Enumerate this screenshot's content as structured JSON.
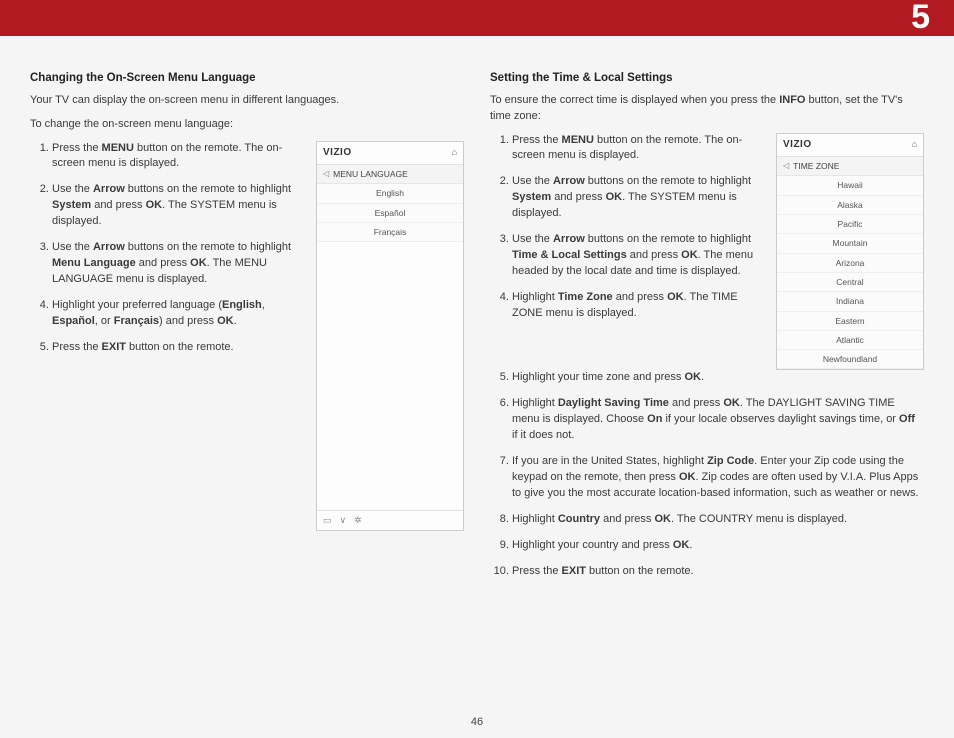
{
  "chapter_number": "5",
  "page_number": "46",
  "left": {
    "title": "Changing the On-Screen Menu Language",
    "intro1": "Your TV can display the on-screen menu in different languages.",
    "intro2": "To change the on-screen menu language:",
    "step1_a": "Press the ",
    "step1_b": "MENU",
    "step1_c": " button on the remote. The on-screen menu is displayed.",
    "step2_a": "Use the ",
    "step2_b": "Arrow",
    "step2_c": " buttons on the remote to highlight ",
    "step2_d": "System",
    "step2_e": " and press ",
    "step2_f": "OK",
    "step2_g": ". The SYSTEM menu is displayed.",
    "step3_a": "Use the ",
    "step3_b": "Arrow",
    "step3_c": " buttons on the remote to highlight ",
    "step3_d": "Menu Language",
    "step3_e": " and press ",
    "step3_f": "OK",
    "step3_g": ". The MENU LANGUAGE menu is displayed.",
    "step4_a": "Highlight your preferred language (",
    "step4_b": "English",
    "step4_c": ", ",
    "step4_d": "Español",
    "step4_e": ", or ",
    "step4_f": "Français",
    "step4_g": ") and press ",
    "step4_h": "OK",
    "step4_i": ".",
    "step5_a": "Press the ",
    "step5_b": "EXIT",
    "step5_c": " button on the remote.",
    "menu": {
      "logo": "VIZIO",
      "title": "MENU LANGUAGE",
      "items": [
        "English",
        "Español",
        "Français"
      ]
    }
  },
  "right": {
    "title": "Setting the Time & Local Settings",
    "intro_a": "To ensure the correct time is displayed when you press the ",
    "intro_b": "INFO",
    "intro_c": " button, set the TV's time zone:",
    "step1_a": "Press the ",
    "step1_b": "MENU",
    "step1_c": " button on the remote. The on-screen menu is displayed.",
    "step2_a": "Use the ",
    "step2_b": "Arrow",
    "step2_c": " buttons on the remote to highlight ",
    "step2_d": "System",
    "step2_e": " and press ",
    "step2_f": "OK",
    "step2_g": ". The SYSTEM menu is displayed.",
    "step3_a": "Use the ",
    "step3_b": "Arrow",
    "step3_c": " buttons on the remote to highlight ",
    "step3_d": "Time & Local Settings",
    "step3_e": " and press ",
    "step3_f": "OK",
    "step3_g": ". The menu headed by the local date and time is displayed.",
    "step4_a": "Highlight ",
    "step4_b": "Time Zone",
    "step4_c": " and press ",
    "step4_d": "OK",
    "step4_e": ". The TIME ZONE menu is displayed.",
    "step5_a": "Highlight your time zone and press ",
    "step5_b": "OK",
    "step5_c": ".",
    "step6_a": "Highlight ",
    "step6_b": "Daylight Saving Time",
    "step6_c": " and press ",
    "step6_d": "OK",
    "step6_e": ". The DAYLIGHT SAVING TIME menu is displayed. Choose ",
    "step6_f": "On",
    "step6_g": " if your locale observes daylight savings time, or ",
    "step6_h": "Off",
    "step6_i": " if it does not.",
    "step7_a": "If you are in the United States, highlight ",
    "step7_b": "Zip Code",
    "step7_c": ". Enter your Zip code using the keypad on the remote, then press ",
    "step7_d": "OK",
    "step7_e": ". Zip codes are often used by V.I.A. Plus Apps to give you the most accurate location-based information, such as weather or news.",
    "step8_a": "Highlight ",
    "step8_b": "Country",
    "step8_c": " and press ",
    "step8_d": "OK",
    "step8_e": ". The COUNTRY menu is displayed.",
    "step9_a": "Highlight your country and press ",
    "step9_b": "OK",
    "step9_c": ".",
    "step10_a": "Press the ",
    "step10_b": "EXIT",
    "step10_c": " button on the remote.",
    "menu": {
      "logo": "VIZIO",
      "title": "TIME ZONE",
      "items": [
        "Hawaii",
        "Alaska",
        "Pacific",
        "Mountain",
        "Arizona",
        "Central",
        "Indiana",
        "Eastern",
        "Atlantic",
        "Newfoundland"
      ]
    }
  },
  "footer_icons": {
    "wide": "▭",
    "down": "∨",
    "gear": "✲"
  },
  "home_glyph": "⌂",
  "chev_left": "◁"
}
